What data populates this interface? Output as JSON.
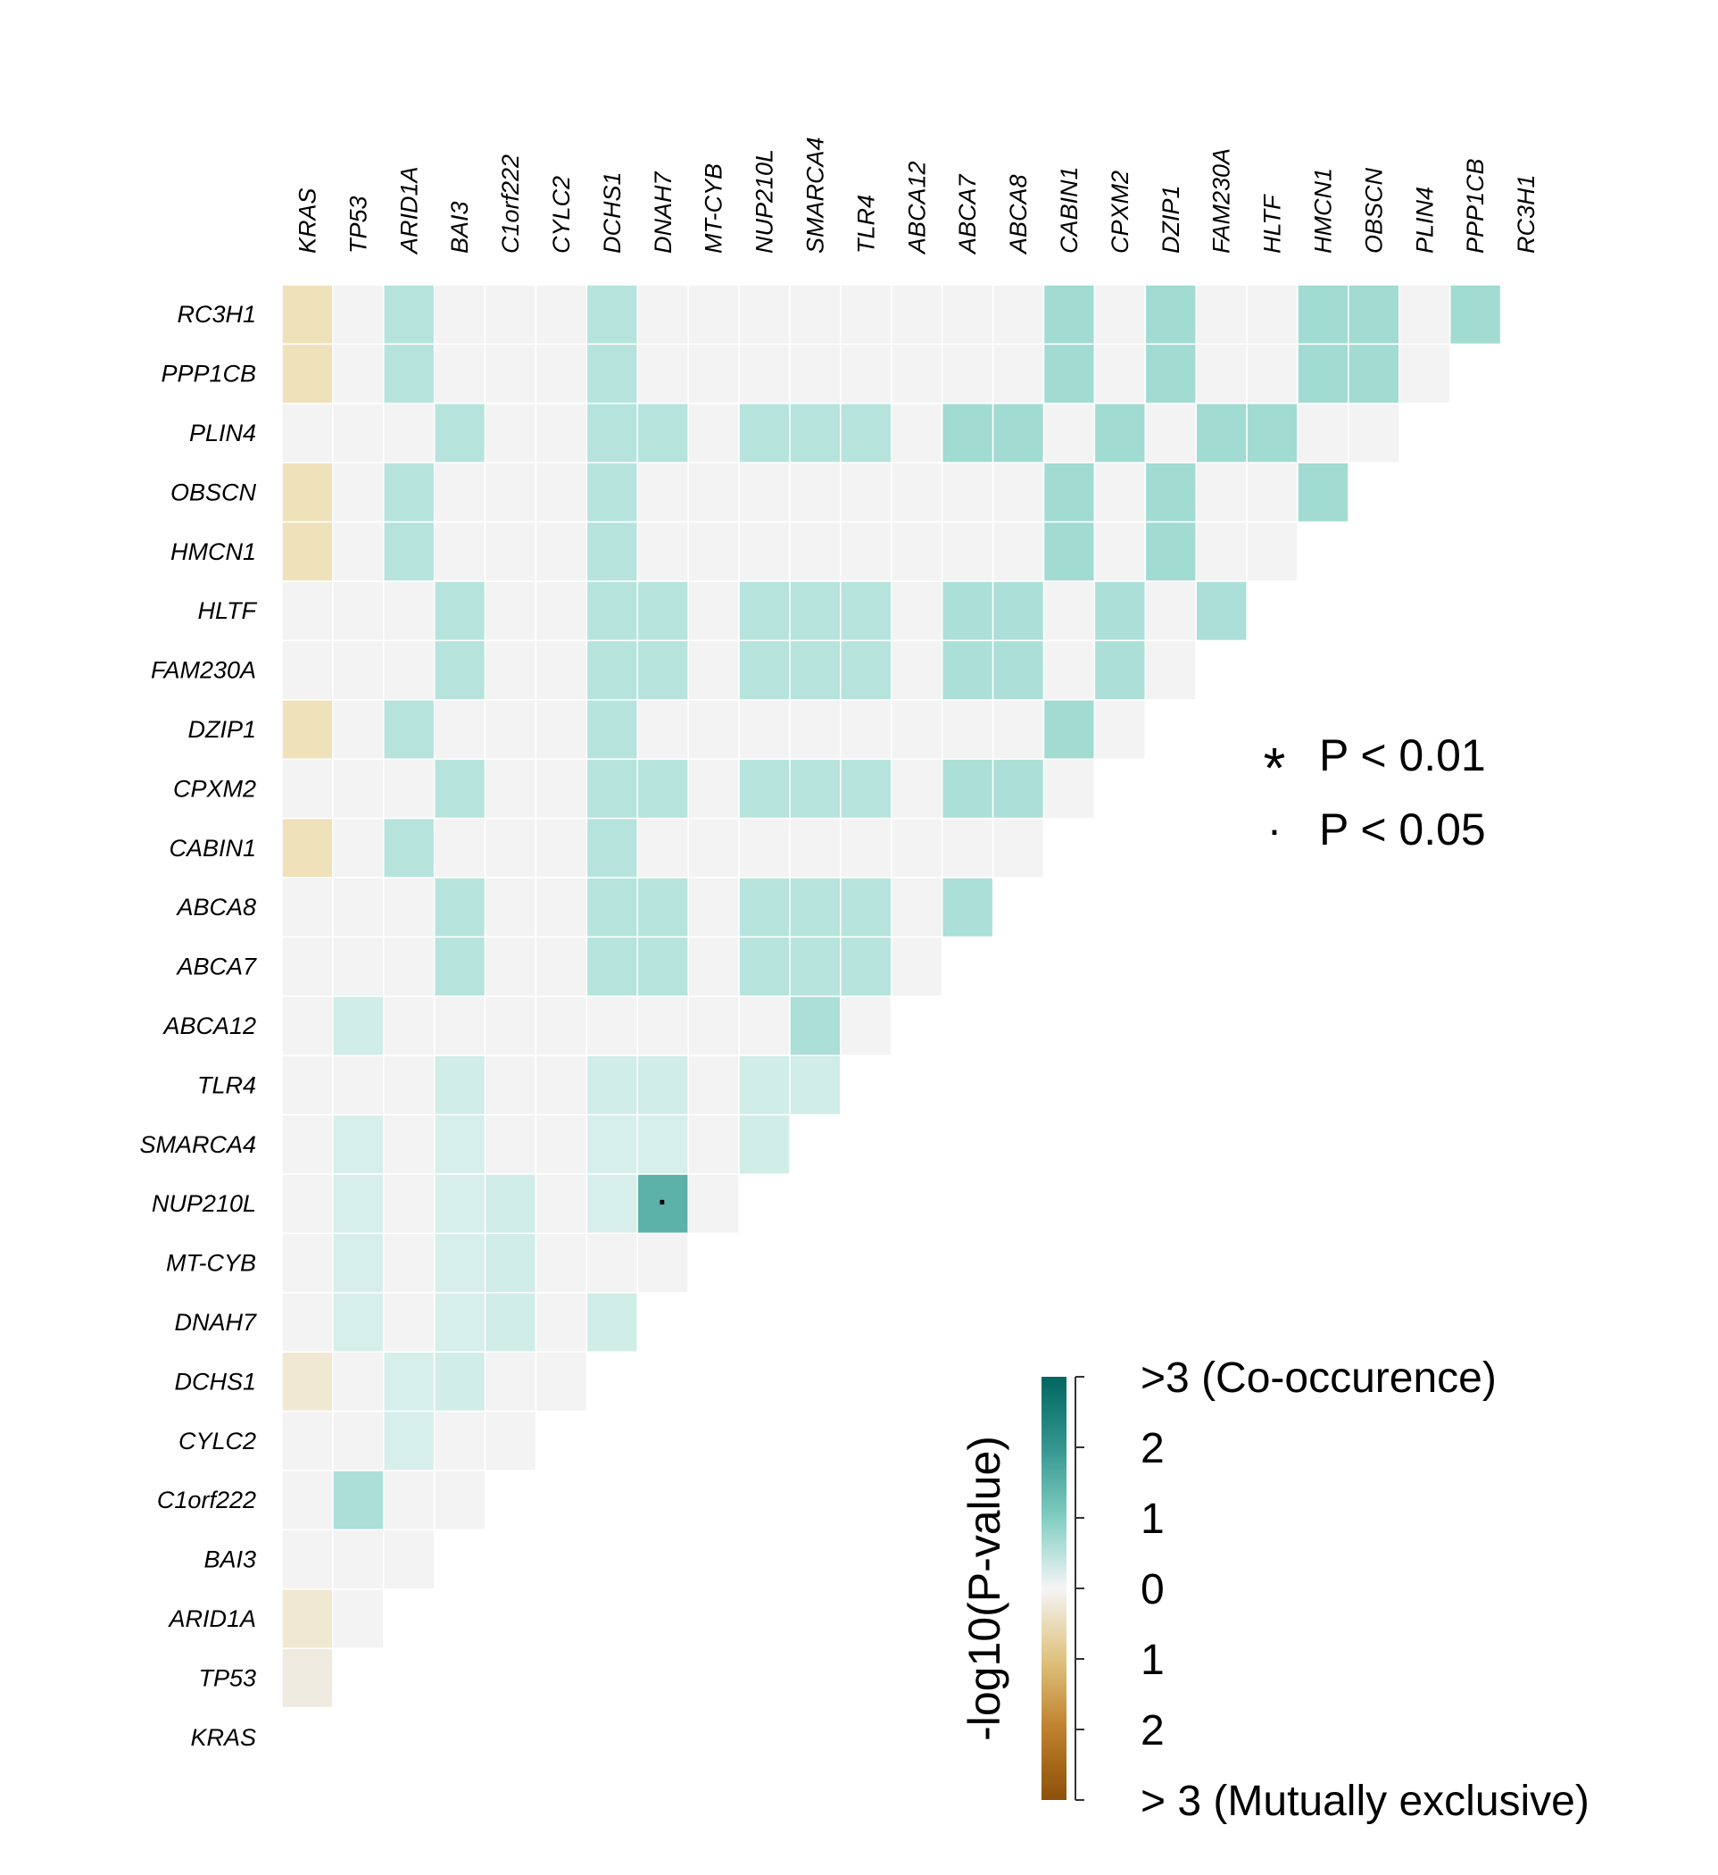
{
  "chart_data": {
    "type": "heatmap",
    "title": "",
    "genes": [
      "KRAS",
      "TP53",
      "ARID1A",
      "BAI3",
      "C1orf222",
      "CYLC2",
      "DCHS1",
      "DNAH7",
      "MT-CYB",
      "NUP210L",
      "SMARCA4",
      "TLR4",
      "ABCA12",
      "ABCA7",
      "ABCA8",
      "CABIN1",
      "CPXM2",
      "DZIP1",
      "FAM230A",
      "HLTF",
      "HMCN1",
      "OBSCN",
      "PLIN4",
      "PPP1CB",
      "RC3H1"
    ],
    "value_description": "signed -log10(P-value); positive = co-occurrence, negative = mutual exclusivity",
    "rows": [
      {
        "gene": "RC3H1",
        "values": [
          -0.6,
          0,
          0.8,
          0,
          0,
          0,
          0.8,
          0,
          0,
          0,
          0,
          0,
          0,
          0,
          0,
          1.2,
          0,
          1.2,
          0,
          0,
          1.2,
          1.2,
          0,
          1.2
        ]
      },
      {
        "gene": "PPP1CB",
        "values": [
          -0.6,
          0,
          0.8,
          0,
          0,
          0,
          0.8,
          0,
          0,
          0,
          0,
          0,
          0,
          0,
          0,
          1.2,
          0,
          1.2,
          0,
          0,
          1.2,
          1.2,
          0
        ]
      },
      {
        "gene": "PLIN4",
        "values": [
          0,
          0,
          0,
          0.8,
          0,
          0,
          0.8,
          0.8,
          0,
          0.8,
          0.8,
          0.8,
          0,
          1.2,
          1.2,
          0,
          1.2,
          0,
          1.2,
          1.2,
          0,
          0
        ]
      },
      {
        "gene": "OBSCN",
        "values": [
          -0.6,
          0,
          0.8,
          0,
          0,
          0,
          0.8,
          0,
          0,
          0,
          0,
          0,
          0,
          0,
          0,
          1.2,
          0,
          1.2,
          0,
          0,
          1.2
        ]
      },
      {
        "gene": "HMCN1",
        "values": [
          -0.6,
          0,
          0.8,
          0,
          0,
          0,
          0.8,
          0,
          0,
          0,
          0,
          0,
          0,
          0,
          0,
          1.2,
          0,
          1.2,
          0,
          0
        ]
      },
      {
        "gene": "HLTF",
        "values": [
          0,
          0,
          0,
          0.8,
          0,
          0,
          0.8,
          0.8,
          0,
          0.8,
          0.8,
          0.8,
          0,
          1.0,
          1.0,
          0,
          1.0,
          0,
          1.0
        ]
      },
      {
        "gene": "FAM230A",
        "values": [
          0,
          0,
          0,
          0.8,
          0,
          0,
          0.8,
          0.8,
          0,
          0.8,
          0.8,
          0.8,
          0,
          1.0,
          1.0,
          0,
          1.0,
          0
        ]
      },
      {
        "gene": "DZIP1",
        "values": [
          -0.6,
          0,
          0.8,
          0,
          0,
          0,
          0.8,
          0,
          0,
          0,
          0,
          0,
          0,
          0,
          0,
          1.2,
          0
        ]
      },
      {
        "gene": "CPXM2",
        "values": [
          0,
          0,
          0,
          0.8,
          0,
          0,
          0.8,
          0.8,
          0,
          0.8,
          0.8,
          0.8,
          0,
          1.0,
          1.0,
          0
        ]
      },
      {
        "gene": "CABIN1",
        "values": [
          -0.6,
          0,
          0.8,
          0,
          0,
          0,
          0.8,
          0,
          0,
          0,
          0,
          0,
          0,
          0,
          0
        ]
      },
      {
        "gene": "ABCA8",
        "values": [
          0,
          0,
          0,
          0.8,
          0,
          0,
          0.8,
          0.8,
          0,
          0.8,
          0.8,
          0.8,
          0,
          1.0
        ]
      },
      {
        "gene": "ABCA7",
        "values": [
          0,
          0,
          0,
          0.8,
          0,
          0,
          0.8,
          0.8,
          0,
          0.8,
          0.8,
          0.8,
          0
        ]
      },
      {
        "gene": "ABCA12",
        "values": [
          0,
          0.5,
          0,
          0,
          0,
          0,
          0,
          0,
          0,
          0,
          1.0,
          0
        ]
      },
      {
        "gene": "TLR4",
        "values": [
          0,
          0,
          0,
          0.5,
          0,
          0,
          0.5,
          0.5,
          0,
          0.5,
          0.5
        ]
      },
      {
        "gene": "SMARCA4",
        "values": [
          0,
          0.4,
          0,
          0.4,
          0,
          0,
          0.4,
          0.4,
          0,
          0.5
        ]
      },
      {
        "gene": "NUP210L",
        "values": [
          0,
          0.4,
          0,
          0.4,
          0.5,
          0,
          0.4,
          1.7,
          0
        ]
      },
      {
        "gene": "MT-CYB",
        "values": [
          0,
          0.4,
          0,
          0.4,
          0.5,
          0,
          0,
          0
        ]
      },
      {
        "gene": "DNAH7",
        "values": [
          0,
          0.4,
          0,
          0.4,
          0.5,
          0,
          0.5
        ]
      },
      {
        "gene": "DCHS1",
        "values": [
          -0.4,
          0,
          0.4,
          0.5,
          0,
          0
        ]
      },
      {
        "gene": "CYLC2",
        "values": [
          0,
          0,
          0.4,
          0,
          0
        ]
      },
      {
        "gene": "C1orf222",
        "values": [
          0,
          1.0,
          0,
          0
        ]
      },
      {
        "gene": "BAI3",
        "values": [
          0,
          0,
          0
        ]
      },
      {
        "gene": "ARID1A",
        "values": [
          -0.4,
          0
        ]
      },
      {
        "gene": "TP53",
        "values": [
          -0.25
        ]
      },
      {
        "gene": "KRAS",
        "values": []
      }
    ],
    "significance": [
      {
        "row": "NUP210L",
        "col": "DNAH7",
        "symbol": "·"
      }
    ],
    "significance_legend": [
      {
        "symbol": "*",
        "label": "P < 0.01"
      },
      {
        "symbol": "·",
        "label": "P < 0.05"
      }
    ],
    "colorbar": {
      "title": "-log10(P-value)",
      "ticks": [
        ">3 (Co-occurence)",
        "2",
        "1",
        "0",
        "1",
        "2",
        "> 3 (Mutually exclusive)"
      ],
      "tick_values": [
        3,
        2,
        1,
        0,
        -1,
        -2,
        -3
      ],
      "colors": {
        "co_occurrence_max": "#01665e",
        "mid": "#f5f5f5",
        "mutually_exclusive_max": "#8c510a"
      }
    }
  }
}
